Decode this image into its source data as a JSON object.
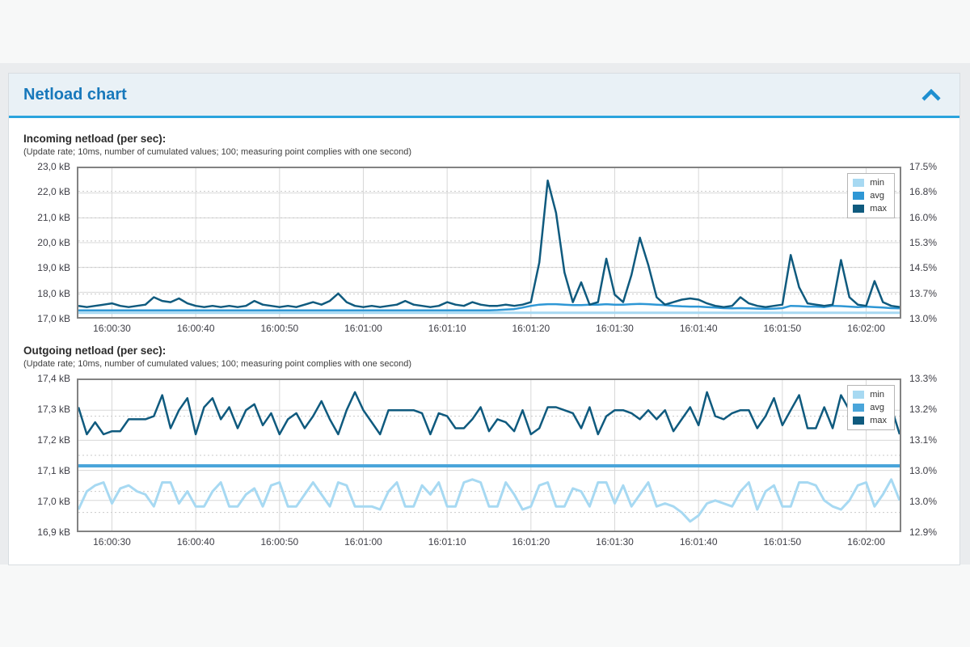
{
  "panel": {
    "title": "Netload chart",
    "accent_color": "#2aa4dd",
    "title_color": "#1778bb",
    "collapse_icon": "chevron-up-icon"
  },
  "chart_data": [
    {
      "type": "line",
      "title": "Incoming netload (per sec):",
      "subtitle": "(Update rate; 10ms, number of cumulated values; 100; measuring point complies with one second)",
      "legend_position": "top-right",
      "grid": true,
      "x_tick_labels": [
        "16:00:30",
        "16:00:40",
        "16:00:50",
        "16:01:00",
        "16:01:10",
        "16:01:20",
        "16:01:30",
        "16:01:40",
        "16:01:50",
        "16:02:00"
      ],
      "x_first_tick_s": 4,
      "x_tick_step_s": 10,
      "x_span_s": 98,
      "y_unit": "kB",
      "y_min": 17.0,
      "y_max": 23.0,
      "left_axis_ticks": [
        "23,0 kB",
        "22,0 kB",
        "21,0 kB",
        "20,0 kB",
        "19,0 kB",
        "18,0 kB",
        "17,0 kB"
      ],
      "right_axis_ticks": [
        "17.5%",
        "16.8%",
        "16.0%",
        "15.3%",
        "14.5%",
        "13.7%",
        "13.0%"
      ],
      "right_grid_kb": [
        22.07,
        21.0,
        20.07,
        19.0,
        17.93
      ],
      "series": [
        {
          "name": "min",
          "color": "#a7d9f2",
          "width": 3,
          "const_value": 17.17
        },
        {
          "name": "avg",
          "color": "#2e97d5",
          "width": 2.5,
          "values": [
            17.27,
            17.27,
            17.27,
            17.27,
            17.27,
            17.27,
            17.27,
            17.27,
            17.27,
            17.27,
            17.27,
            17.27,
            17.27,
            17.27,
            17.27,
            17.27,
            17.27,
            17.27,
            17.27,
            17.27,
            17.27,
            17.27,
            17.27,
            17.27,
            17.27,
            17.27,
            17.27,
            17.27,
            17.27,
            17.27,
            17.27,
            17.27,
            17.27,
            17.27,
            17.27,
            17.27,
            17.27,
            17.27,
            17.27,
            17.27,
            17.27,
            17.27,
            17.27,
            17.27,
            17.27,
            17.27,
            17.27,
            17.27,
            17.27,
            17.27,
            17.28,
            17.3,
            17.32,
            17.38,
            17.45,
            17.5,
            17.52,
            17.52,
            17.5,
            17.48,
            17.48,
            17.5,
            17.5,
            17.52,
            17.5,
            17.5,
            17.52,
            17.53,
            17.52,
            17.5,
            17.48,
            17.45,
            17.43,
            17.42,
            17.42,
            17.4,
            17.38,
            17.36,
            17.35,
            17.36,
            17.35,
            17.34,
            17.33,
            17.34,
            17.36,
            17.45,
            17.44,
            17.42,
            17.42,
            17.4,
            17.45,
            17.44,
            17.42,
            17.4,
            17.42,
            17.4,
            17.38,
            17.36,
            17.35
          ]
        },
        {
          "name": "max",
          "color": "#0f5a7e",
          "width": 2.5,
          "values": [
            17.45,
            17.4,
            17.45,
            17.5,
            17.55,
            17.45,
            17.4,
            17.45,
            17.5,
            17.8,
            17.65,
            17.6,
            17.75,
            17.55,
            17.45,
            17.4,
            17.45,
            17.4,
            17.45,
            17.4,
            17.45,
            17.65,
            17.5,
            17.45,
            17.4,
            17.45,
            17.4,
            17.5,
            17.6,
            17.5,
            17.65,
            17.95,
            17.6,
            17.45,
            17.4,
            17.45,
            17.4,
            17.45,
            17.5,
            17.65,
            17.5,
            17.45,
            17.4,
            17.45,
            17.6,
            17.5,
            17.45,
            17.6,
            17.5,
            17.45,
            17.45,
            17.5,
            17.45,
            17.5,
            17.6,
            19.2,
            22.5,
            21.2,
            18.8,
            17.6,
            18.4,
            17.5,
            17.6,
            19.35,
            17.9,
            17.6,
            18.7,
            20.2,
            19.1,
            17.8,
            17.5,
            17.6,
            17.7,
            17.75,
            17.7,
            17.55,
            17.45,
            17.4,
            17.45,
            17.8,
            17.55,
            17.45,
            17.4,
            17.45,
            17.5,
            19.5,
            18.2,
            17.55,
            17.5,
            17.45,
            17.5,
            19.3,
            17.8,
            17.5,
            17.45,
            18.45,
            17.6,
            17.45,
            17.4
          ]
        }
      ]
    },
    {
      "type": "line",
      "title": "Outgoing netload (per sec):",
      "subtitle": "(Update rate; 10ms, number of cumulated values; 100; measuring point complies with one second)",
      "legend_position": "top-right",
      "grid": true,
      "x_tick_labels": [
        "16:00:30",
        "16:00:40",
        "16:00:50",
        "16:01:00",
        "16:01:10",
        "16:01:20",
        "16:01:30",
        "16:01:40",
        "16:01:50",
        "16:02:00"
      ],
      "x_first_tick_s": 4,
      "x_tick_step_s": 10,
      "x_span_s": 98,
      "y_unit": "kB",
      "y_min": 16.9,
      "y_max": 17.4,
      "left_axis_ticks": [
        "17,4 kB",
        "17,3 kB",
        "17,2 kB",
        "17,1 kB",
        "17,0 kB",
        "16,9 kB"
      ],
      "right_axis_ticks": [
        "13.3%",
        "13.2%",
        "13.1%",
        "13.0%",
        "13.0%",
        "12.9%"
      ],
      "right_grid_kb": [
        17.28,
        17.15,
        17.03,
        16.96
      ],
      "series": [
        {
          "name": "min",
          "color": "#a7d9f2",
          "width": 3,
          "values": [
            16.97,
            17.03,
            17.05,
            17.06,
            16.99,
            17.04,
            17.05,
            17.03,
            17.02,
            16.98,
            17.06,
            17.06,
            16.99,
            17.03,
            16.98,
            16.98,
            17.03,
            17.06,
            16.98,
            16.98,
            17.02,
            17.04,
            16.98,
            17.05,
            17.06,
            16.98,
            16.98,
            17.02,
            17.06,
            17.02,
            16.98,
            17.06,
            17.05,
            16.98,
            16.98,
            16.98,
            16.97,
            17.03,
            17.06,
            16.98,
            16.98,
            17.05,
            17.02,
            17.06,
            16.98,
            16.98,
            17.06,
            17.07,
            17.06,
            16.98,
            16.98,
            17.06,
            17.02,
            16.97,
            16.98,
            17.05,
            17.06,
            16.98,
            16.98,
            17.04,
            17.03,
            16.98,
            17.06,
            17.06,
            16.99,
            17.05,
            16.98,
            17.02,
            17.06,
            16.98,
            16.99,
            16.98,
            16.96,
            16.93,
            16.95,
            16.99,
            17.0,
            16.99,
            16.98,
            17.03,
            17.06,
            16.97,
            17.03,
            17.05,
            16.98,
            16.98,
            17.06,
            17.06,
            17.05,
            17.0,
            16.98,
            16.97,
            17.0,
            17.05,
            17.06,
            16.98,
            17.02,
            17.07,
            17.0
          ]
        },
        {
          "name": "avg",
          "color": "#4aa5da",
          "width": 4,
          "const_value": 17.115
        },
        {
          "name": "max",
          "color": "#0f5a7e",
          "width": 2.5,
          "values": [
            17.31,
            17.22,
            17.26,
            17.22,
            17.23,
            17.23,
            17.27,
            17.27,
            17.27,
            17.28,
            17.35,
            17.24,
            17.3,
            17.34,
            17.22,
            17.31,
            17.34,
            17.27,
            17.31,
            17.24,
            17.3,
            17.32,
            17.25,
            17.29,
            17.22,
            17.27,
            17.29,
            17.24,
            17.28,
            17.33,
            17.27,
            17.22,
            17.3,
            17.36,
            17.3,
            17.26,
            17.22,
            17.3,
            17.3,
            17.3,
            17.3,
            17.29,
            17.22,
            17.29,
            17.28,
            17.24,
            17.24,
            17.27,
            17.31,
            17.23,
            17.27,
            17.26,
            17.23,
            17.3,
            17.22,
            17.24,
            17.31,
            17.31,
            17.3,
            17.29,
            17.24,
            17.31,
            17.22,
            17.28,
            17.3,
            17.3,
            17.29,
            17.27,
            17.3,
            17.27,
            17.3,
            17.23,
            17.27,
            17.31,
            17.25,
            17.36,
            17.28,
            17.27,
            17.29,
            17.3,
            17.3,
            17.24,
            17.28,
            17.34,
            17.25,
            17.3,
            17.35,
            17.24,
            17.24,
            17.31,
            17.24,
            17.35,
            17.3,
            17.3,
            17.31,
            17.36,
            17.24,
            17.31,
            17.22
          ]
        }
      ]
    }
  ]
}
